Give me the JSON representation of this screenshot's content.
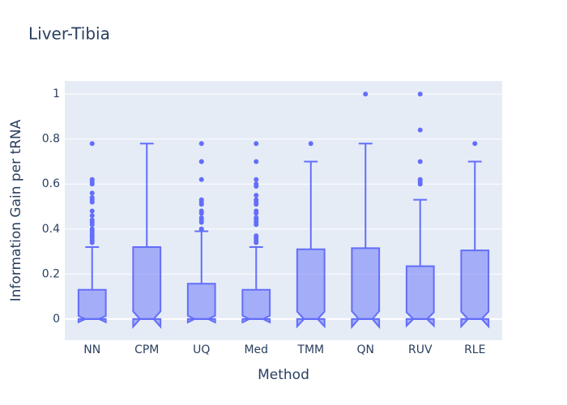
{
  "chart_data": {
    "type": "box",
    "title": "Liver-Tibia",
    "x_label": "Method",
    "y_label": "Information Gain per tRNA",
    "categories": [
      "NN",
      "CPM",
      "UQ",
      "Med",
      "TMM",
      "QN",
      "RUV",
      "RLE"
    ],
    "color": "#636efa",
    "grid": true,
    "ylim": [
      -0.094,
      1.058
    ],
    "yticks": [
      0,
      0.2,
      0.4,
      0.6,
      0.8,
      1
    ],
    "boxes": [
      {
        "lowerfence": 0,
        "q1": 0,
        "median": 0,
        "q3": 0.13,
        "upperfence": 0.32,
        "notchspan": 0.014,
        "outliers": [
          0.34,
          0.35,
          0.36,
          0.37,
          0.38,
          0.39,
          0.4,
          0.42,
          0.43,
          0.44,
          0.46,
          0.48,
          0.52,
          0.53,
          0.54,
          0.56,
          0.6,
          0.61,
          0.62,
          0.78
        ]
      },
      {
        "lowerfence": 0,
        "q1": 0,
        "median": 0,
        "q3": 0.32,
        "upperfence": 0.78,
        "notchspan": 0.034,
        "outliers": []
      },
      {
        "lowerfence": 0,
        "q1": 0,
        "median": 0,
        "q3": 0.157,
        "upperfence": 0.39,
        "notchspan": 0.015,
        "outliers": [
          0.4,
          0.4,
          0.43,
          0.44,
          0.45,
          0.47,
          0.48,
          0.51,
          0.52,
          0.53,
          0.62,
          0.7,
          0.7,
          0.78
        ]
      },
      {
        "lowerfence": 0,
        "q1": 0,
        "median": 0,
        "q3": 0.13,
        "upperfence": 0.32,
        "notchspan": 0.015,
        "outliers": [
          0.34,
          0.35,
          0.36,
          0.37,
          0.42,
          0.43,
          0.44,
          0.45,
          0.47,
          0.48,
          0.51,
          0.52,
          0.53,
          0.55,
          0.59,
          0.6,
          0.62,
          0.7,
          0.78
        ]
      },
      {
        "lowerfence": 0,
        "q1": 0,
        "median": 0,
        "q3": 0.31,
        "upperfence": 0.7,
        "notchspan": 0.033,
        "outliers": [
          0.78
        ]
      },
      {
        "lowerfence": 0,
        "q1": 0,
        "median": 0,
        "q3": 0.315,
        "upperfence": 0.78,
        "notchspan": 0.035,
        "outliers": [
          1
        ]
      },
      {
        "lowerfence": 0,
        "q1": 0,
        "median": 0,
        "q3": 0.235,
        "upperfence": 0.53,
        "notchspan": 0.03,
        "outliers": [
          0.6,
          0.61,
          0.62,
          0.7,
          0.84,
          1
        ]
      },
      {
        "lowerfence": 0,
        "q1": 0,
        "median": 0,
        "q3": 0.305,
        "upperfence": 0.7,
        "notchspan": 0.033,
        "outliers": [
          0.78
        ]
      }
    ]
  }
}
